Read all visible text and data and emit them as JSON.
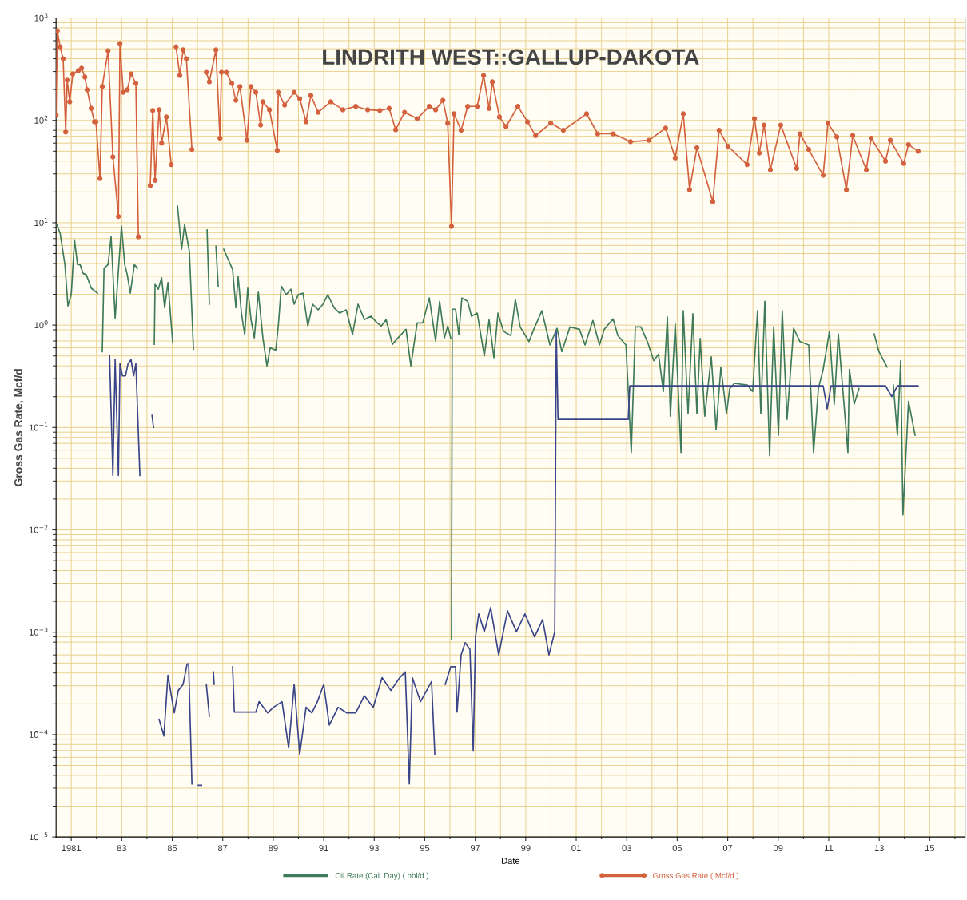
{
  "chart_data": {
    "type": "line",
    "title": "LINDRITH WEST::GALLUP-DAKOTA",
    "xlabel": "Date",
    "ylabel": "Gross Gas Rate, Mcf/d",
    "log": "y",
    "grid": true,
    "legend": "bottom",
    "xlim": [
      1980.4,
      2016.4
    ],
    "xticks": [
      1981,
      {
        "value": 1983,
        "label": "83"
      },
      {
        "value": 1985,
        "label": "85"
      },
      {
        "value": 1987,
        "label": "87"
      },
      {
        "value": 1989,
        "label": "89"
      },
      {
        "value": 1991,
        "label": "91"
      },
      {
        "value": 1993,
        "label": "93"
      },
      {
        "value": 1995,
        "label": "95"
      },
      {
        "value": 1997,
        "label": "97"
      },
      {
        "value": 1999,
        "label": "99"
      },
      {
        "value": 2001,
        "label": "01"
      },
      {
        "value": 2003,
        "label": "03"
      },
      {
        "value": 2005,
        "label": "05"
      },
      {
        "value": 2007,
        "label": "07"
      },
      {
        "value": 2009,
        "label": "09"
      },
      {
        "value": 2011,
        "label": "11"
      },
      {
        "value": 2013,
        "label": "13"
      },
      {
        "value": 2015,
        "label": "15"
      }
    ],
    "ylim": [
      1e-05,
      1000
    ],
    "yticks": [
      {
        "value": 1000,
        "label": "10$^{3}$"
      },
      {
        "value": 100,
        "label": "10$^{2}$"
      },
      {
        "value": 10,
        "label": "10$^{1}$"
      },
      {
        "value": 1,
        "label": "10$^{0}$"
      },
      {
        "value": 0.1,
        "label": "10$^{−1}$"
      },
      {
        "value": 0.01,
        "label": "10$^{−2}$"
      },
      {
        "value": 0.001,
        "label": "10$^{−3}$"
      },
      {
        "value": 0.0001,
        "label": "10$^{−4}$"
      },
      {
        "value": 1e-05,
        "label": "10$^{−5}$"
      }
    ],
    "series": [
      {
        "name": "Oil Rate (Cal. Day) ( bbl/d )",
        "color": "#3f7a5a",
        "marker": "none",
        "x": [
          1980.43,
          1980.56,
          1980.75,
          1980.87,
          1981.0,
          1981.13,
          1981.25,
          1981.35,
          1981.47,
          1981.6,
          1981.79,
          1982.04,
          1982.1,
          1982.23,
          1982.3,
          1982.46,
          1982.58,
          1982.74,
          1982.99,
          1983.12,
          1983.22,
          1983.34,
          1983.5,
          1983.63,
          1983.9,
          1984.29,
          1984.32,
          1984.45,
          1984.58,
          1984.7,
          1984.83,
          1985.02,
          1985.07,
          1985.21,
          1985.37,
          1985.49,
          1985.68,
          1985.84,
          1986.2,
          1986.38,
          1986.47,
          1986.55,
          1986.73,
          1986.82,
          1986.9,
          1987.04,
          1987.39,
          1987.52,
          1987.61,
          1987.74,
          1987.87,
          1987.99,
          1988.12,
          1988.25,
          1988.41,
          1988.59,
          1988.75,
          1988.88,
          1989.1,
          1989.2,
          1989.32,
          1989.51,
          1989.7,
          1989.83,
          1989.99,
          1990.18,
          1990.37,
          1990.56,
          1990.78,
          1990.97,
          1991.16,
          1991.41,
          1991.63,
          1991.89,
          1992.14,
          1992.36,
          1992.61,
          1992.87,
          1993.12,
          1993.28,
          1993.47,
          1993.72,
          1993.94,
          1994.26,
          1994.45,
          1994.7,
          1994.92,
          1995.18,
          1995.43,
          1995.59,
          1995.78,
          1995.91,
          1996.03,
          1996.05,
          1996.06,
          1996.09,
          1996.22,
          1996.35,
          1996.47,
          1996.7,
          1996.85,
          1997.08,
          1997.36,
          1997.55,
          1997.74,
          1997.9,
          1998.12,
          1998.41,
          1998.59,
          1998.78,
          1999.13,
          1999.32,
          1999.64,
          1999.96,
          2000.24,
          2000.43,
          2000.75,
          2001.13,
          2001.35,
          2001.66,
          2001.92,
          2002.11,
          2002.46,
          2002.65,
          2002.97,
          2003.18,
          2003.34,
          2003.56,
          2003.82,
          2004.07,
          2004.26,
          2004.45,
          2004.61,
          2004.73,
          2004.92,
          2005.15,
          2005.24,
          2005.43,
          2005.62,
          2005.78,
          2005.91,
          2006.09,
          2006.35,
          2006.54,
          2006.73,
          2006.95,
          2007.08,
          2007.27,
          2007.77,
          2007.99,
          2008.18,
          2008.31,
          2008.47,
          2008.66,
          2008.82,
          2009.01,
          2009.16,
          2009.35,
          2009.61,
          2009.86,
          2010.21,
          2010.4,
          2010.59,
          2010.78,
          2011.03,
          2011.22,
          2011.38,
          2011.76,
          2011.82,
          2012.01,
          2012.2,
          2012.5,
          2012.8,
          2012.99,
          2013.31,
          2013.4,
          2013.56,
          2013.72,
          2013.85,
          2013.94,
          2014.16,
          2014.42
        ],
        "values": [
          9.6,
          7.9,
          3.9,
          1.54,
          1.98,
          6.8,
          3.9,
          3.9,
          3.2,
          3.1,
          2.3,
          2.05,
          null,
          0.55,
          3.6,
          3.9,
          7.3,
          1.17,
          9.3,
          3.9,
          3.1,
          2.05,
          3.9,
          3.6,
          null,
          0.65,
          2.5,
          2.24,
          2.9,
          1.48,
          2.6,
          0.67,
          null,
          14.5,
          5.5,
          9.6,
          5.2,
          0.58,
          null,
          8.5,
          1.6,
          null,
          5.9,
          2.4,
          null,
          5.5,
          3.5,
          1.48,
          3.0,
          1.31,
          0.81,
          2.3,
          1.13,
          0.75,
          2.1,
          0.75,
          0.4,
          0.6,
          0.57,
          0.98,
          2.4,
          1.98,
          2.24,
          1.6,
          1.98,
          2.05,
          0.98,
          1.6,
          1.41,
          1.6,
          1.98,
          1.48,
          1.31,
          1.41,
          0.81,
          1.6,
          1.13,
          1.22,
          1.05,
          0.98,
          1.13,
          0.65,
          0.75,
          0.91,
          0.4,
          1.05,
          1.05,
          1.84,
          0.7,
          1.71,
          0.75,
          0.98,
          0.75,
          null,
          0.00086,
          1.43,
          1.43,
          0.81,
          1.84,
          1.71,
          1.22,
          1.31,
          0.5,
          1.13,
          0.48,
          1.31,
          0.87,
          0.79,
          1.78,
          0.96,
          0.69,
          0.91,
          1.38,
          0.64,
          0.93,
          0.55,
          0.96,
          0.91,
          0.64,
          1.11,
          0.64,
          0.91,
          1.15,
          0.79,
          0.64,
          0.057,
          0.96,
          0.96,
          0.69,
          0.45,
          0.52,
          0.225,
          1.2,
          0.129,
          1.04,
          0.057,
          1.38,
          0.136,
          1.29,
          0.136,
          0.74,
          0.129,
          0.49,
          0.095,
          0.39,
          0.136,
          0.24,
          0.27,
          0.26,
          0.225,
          1.38,
          0.136,
          1.71,
          0.053,
          0.96,
          0.084,
          1.38,
          0.12,
          0.93,
          0.69,
          0.64,
          0.057,
          0.24,
          0.37,
          0.87,
          0.169,
          0.82,
          0.057,
          0.37,
          0.169,
          0.24,
          null,
          0.82,
          0.55,
          0.39,
          null,
          0.26,
          0.084,
          0.45,
          0.014,
          0.18,
          0.084
        ]
      },
      {
        "name": "Gross Gas Rate ( Mcf/d )",
        "color": "#d4613e",
        "marker": "circle",
        "x": [
          1980.4,
          1980.45,
          1980.56,
          1980.68,
          1980.78,
          1980.84,
          1980.94,
          1981.06,
          1981.28,
          1981.41,
          1981.54,
          1981.63,
          1981.79,
          1981.92,
          1981.98,
          1982.14,
          1982.23,
          1982.46,
          1982.65,
          1982.87,
          1982.93,
          1983.06,
          1983.22,
          1983.37,
          1983.56,
          1983.66,
          1983.9,
          1984.13,
          1984.23,
          1984.32,
          1984.48,
          1984.58,
          1984.77,
          1984.96,
          1985.05,
          1985.15,
          1985.3,
          1985.43,
          1985.56,
          1985.78,
          1986.1,
          1986.35,
          1986.47,
          1986.73,
          1986.89,
          1986.95,
          1987.14,
          1987.36,
          1987.52,
          1987.68,
          1987.96,
          1988.12,
          1988.31,
          1988.5,
          1988.59,
          1988.85,
          1989.16,
          1989.2,
          1989.45,
          1989.83,
          1990.05,
          1990.3,
          1990.49,
          1990.78,
          1991.28,
          1991.76,
          1992.27,
          1992.74,
          1993.22,
          1993.59,
          1993.85,
          1994.2,
          1994.7,
          1995.18,
          1995.43,
          1995.72,
          1995.91,
          1996.06,
          1996.16,
          1996.44,
          1996.7,
          1997.08,
          1997.33,
          1997.55,
          1997.68,
          1997.96,
          1998.22,
          1998.69,
          1999.07,
          1999.39,
          1999.99,
          2000.49,
          2001.41,
          2001.85,
          2002.46,
          2003.15,
          2003.88,
          2004.54,
          2004.92,
          2005.24,
          2005.49,
          2005.78,
          2006.41,
          2006.66,
          2007.01,
          2007.77,
          2008.06,
          2008.25,
          2008.44,
          2008.69,
          2009.1,
          2009.73,
          2009.86,
          2010.21,
          2010.78,
          2010.97,
          2011.32,
          2011.7,
          2011.95,
          2012.49,
          2012.68,
          2013.25,
          2013.44,
          2013.97,
          2014.16,
          2014.54
        ],
        "values": [
          112,
          750,
          523,
          400,
          77,
          247,
          152,
          284,
          306,
          323,
          265,
          199,
          131,
          97,
          97,
          27,
          214,
          479,
          44,
          11.5,
          564,
          188,
          199,
          284,
          230,
          7.3,
          null,
          23,
          125,
          26,
          127,
          60,
          108,
          37,
          null,
          523,
          275,
          488,
          400,
          52,
          null,
          295,
          238,
          488,
          67,
          295,
          295,
          230,
          157,
          214,
          64,
          214,
          188,
          90,
          152,
          127,
          51,
          188,
          141,
          188,
          163,
          97,
          175,
          120,
          152,
          127,
          137,
          127,
          125,
          131,
          81,
          120,
          104,
          137,
          127,
          157,
          94,
          9.2,
          116,
          80,
          137,
          137,
          275,
          131,
          238,
          108,
          87,
          137,
          97,
          71,
          94,
          80,
          116,
          74,
          74,
          62,
          64,
          84,
          43,
          116,
          21,
          54,
          16,
          80,
          56,
          37,
          104,
          48,
          90,
          33,
          90,
          34,
          74,
          52,
          29,
          94,
          69,
          21,
          71,
          33,
          67,
          40,
          64,
          38,
          58,
          50
        ]
      },
      {
        "color": "#3a4588",
        "marker": "none",
        "x": [
          1982.52,
          1982.65,
          1982.74,
          1982.87,
          1982.93,
          1983.03,
          1983.15,
          1983.25,
          1983.37,
          1983.47,
          1983.56,
          1983.72,
          1984.0,
          1984.2,
          1984.26,
          1984.4,
          1984.48,
          1984.67,
          1984.83,
          1985.08,
          1985.24,
          1985.43,
          1985.59,
          1985.65,
          1985.78,
          1985.9,
          1986.03,
          1986.16,
          1986.2,
          1986.35,
          1986.47,
          1986.5,
          1986.63,
          1986.66,
          1986.8,
          1987.39,
          1987.46,
          1988.31,
          1988.44,
          1988.78,
          1989.01,
          1989.35,
          1989.61,
          1989.83,
          1990.05,
          1990.3,
          1990.53,
          1990.75,
          1991.0,
          1991.22,
          1991.57,
          1991.92,
          1992.27,
          1992.61,
          1992.96,
          1993.31,
          1993.66,
          1994.01,
          1994.23,
          1994.39,
          1994.51,
          1994.83,
          1995.27,
          1995.4,
          1995.6,
          1995.81,
          1996.03,
          1996.22,
          1996.28,
          1996.44,
          1996.6,
          1996.79,
          1996.92,
          1997.01,
          1997.14,
          1997.36,
          1997.61,
          1997.93,
          1998.28,
          1998.63,
          1998.97,
          1999.35,
          1999.67,
          1999.92,
          2000.15,
          2000.21,
          2000.28,
          2003.06,
          2003.12,
          2010.78,
          2010.94,
          2011.09,
          2013.25,
          2013.5,
          2013.72,
          2014.54
        ],
        "values": [
          0.5,
          0.034,
          0.46,
          0.034,
          0.42,
          0.32,
          0.32,
          0.42,
          0.46,
          0.32,
          0.42,
          0.034,
          null,
          0.131,
          0.1,
          null,
          0.000141,
          9.7e-05,
          0.00038,
          0.000163,
          0.00027,
          0.00031,
          0.00049,
          0.00049,
          3.3e-05,
          null,
          3.2e-05,
          3.2e-05,
          null,
          0.00031,
          0.000151,
          null,
          0.00041,
          0.00031,
          null,
          0.00046,
          0.000166,
          0.000166,
          0.00021,
          0.000163,
          0.000185,
          0.00021,
          7.4e-05,
          0.00031,
          6.4e-05,
          0.000185,
          0.000163,
          0.00021,
          0.00031,
          0.000124,
          0.000185,
          0.000163,
          0.000163,
          0.00024,
          0.000185,
          0.00036,
          0.00027,
          0.00036,
          0.00041,
          3.3e-05,
          0.00036,
          0.00021,
          0.00033,
          6.4e-05,
          null,
          0.00031,
          0.00046,
          0.00046,
          0.000166,
          0.0006,
          0.00079,
          0.00068,
          6.9e-05,
          0.0009,
          0.00151,
          0.00101,
          0.00174,
          0.0006,
          0.00162,
          0.00101,
          0.00151,
          0.0009,
          0.00133,
          0.0006,
          0.00101,
          0.86,
          0.12,
          0.12,
          0.255,
          0.255,
          0.152,
          0.255,
          0.255,
          0.2,
          0.255,
          0.255
        ]
      }
    ]
  }
}
